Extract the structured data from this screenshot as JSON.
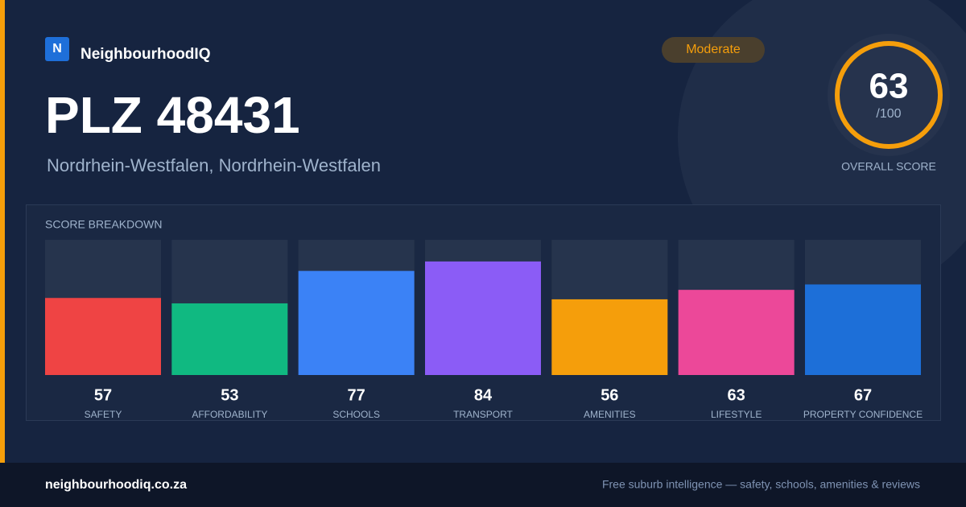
{
  "brand": "NeighbourhoodIQ",
  "brand_icon": "N",
  "badge": "Moderate",
  "title": "PLZ 48431",
  "subtitle": "Nordrhein-Westfalen, Nordrhein-Westfalen",
  "overall": {
    "score": 63,
    "max": {
      "value": 100,
      "label": "/100"
    },
    "label": "OVERALL SCORE",
    "color": "#f59e0b"
  },
  "breakdown": {
    "title": "SCORE BREAKDOWN",
    "items": [
      {
        "label": "SAFETY",
        "value": 57,
        "color": "#ef4444"
      },
      {
        "label": "AFFORDABILITY",
        "value": 53,
        "color": "#10b981"
      },
      {
        "label": "SCHOOLS",
        "value": 77,
        "color": "#3b82f6"
      },
      {
        "label": "TRANSPORT",
        "value": 84,
        "color": "#8b5cf6"
      },
      {
        "label": "AMENITIES",
        "value": 56,
        "color": "#f59e0b"
      },
      {
        "label": "LIFESTYLE",
        "value": 63,
        "color": "#ec4899"
      },
      {
        "label": "PROPERTY CONFIDENCE",
        "value": 67,
        "color": "#1d6fd8"
      }
    ]
  },
  "footer": {
    "site": "neighbourhoodiq.co.za",
    "tagline": "Free suburb intelligence — safety, schools, amenities & reviews"
  }
}
